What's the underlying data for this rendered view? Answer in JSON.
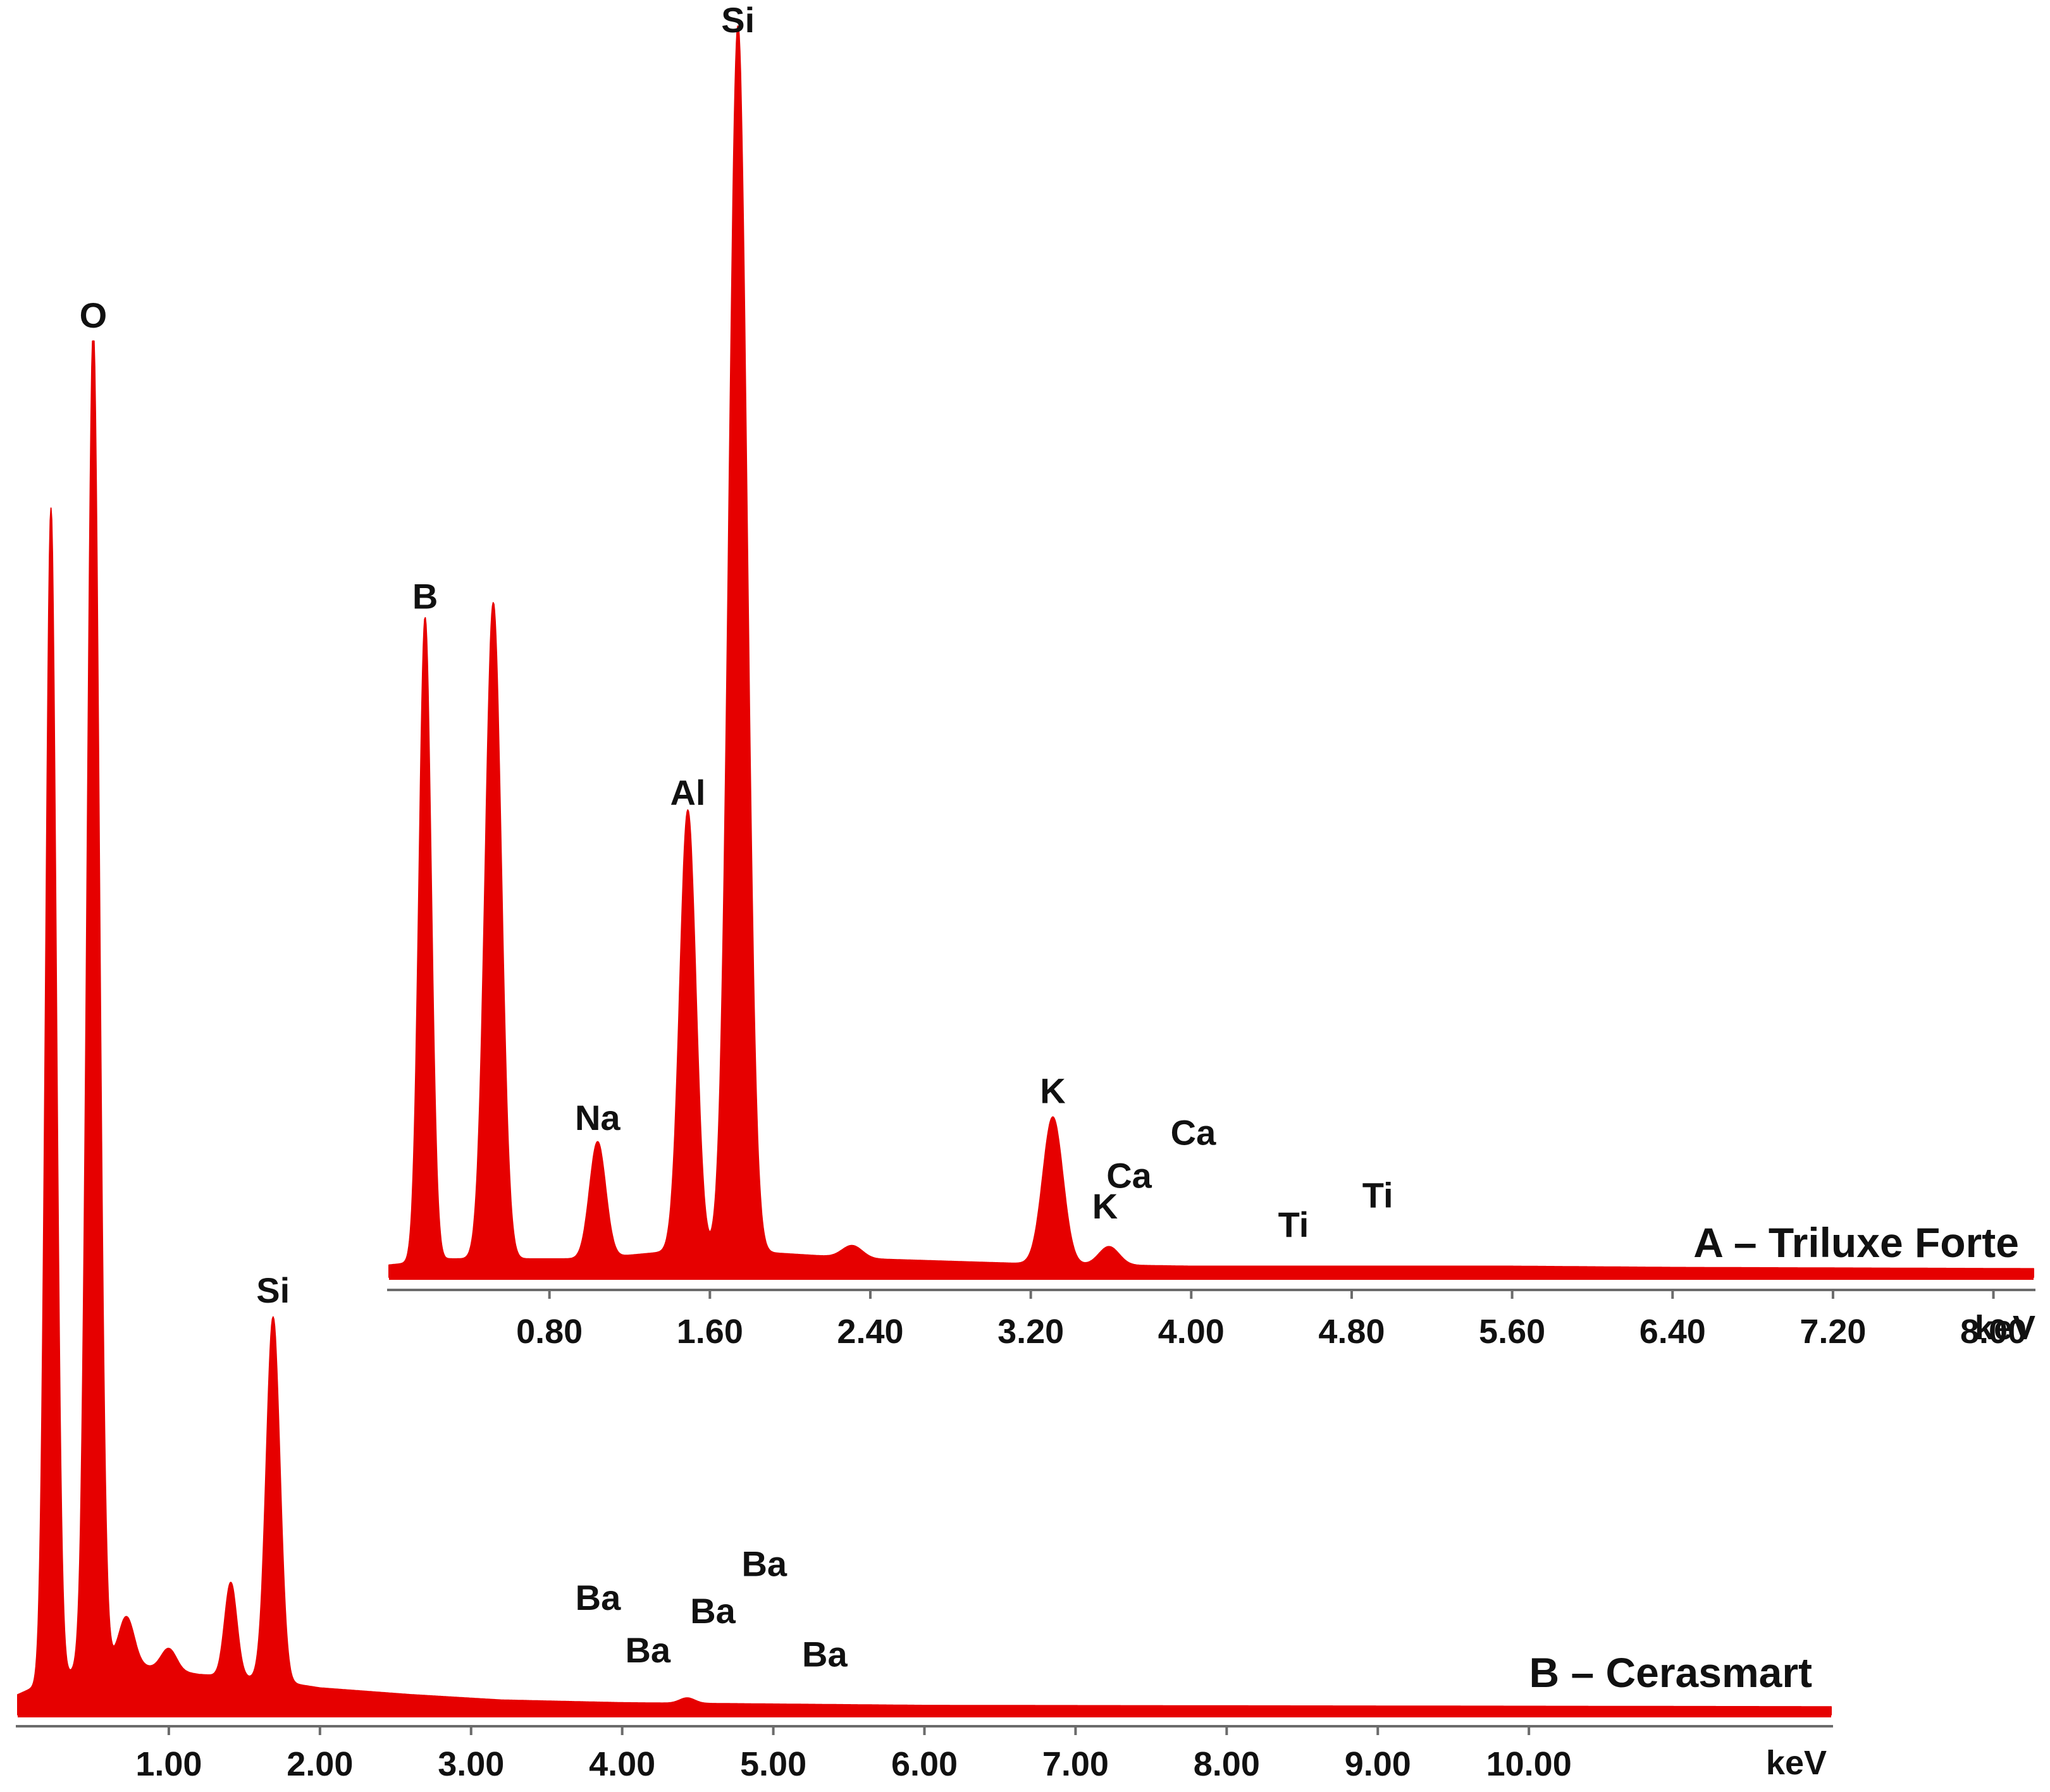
{
  "chart_data": [
    {
      "type": "area",
      "title": "A – Triluxe Forte",
      "xlabel": "keV",
      "ylabel": "",
      "xlim": [
        0.0,
        8.2
      ],
      "ylim": [
        0,
        100
      ],
      "grid": false,
      "color": "#e60000",
      "tick_labels": [
        "0.80",
        "1.60",
        "2.40",
        "3.20",
        "4.00",
        "4.80",
        "5.60",
        "6.40",
        "7.20",
        "8.00"
      ],
      "tick_values": [
        0.8,
        1.6,
        2.4,
        3.2,
        4.0,
        4.8,
        5.6,
        6.4,
        7.2,
        8.0
      ],
      "baseline": 0.5,
      "background": [
        [
          0.0,
          0.5
        ],
        [
          0.3,
          1.0
        ],
        [
          0.6,
          1.0
        ],
        [
          1.0,
          1.0
        ],
        [
          1.4,
          1.6
        ],
        [
          1.8,
          1.6
        ],
        [
          2.4,
          1.0
        ],
        [
          3.2,
          0.6
        ],
        [
          4.0,
          0.4
        ],
        [
          5.6,
          0.4
        ],
        [
          6.4,
          0.3
        ],
        [
          8.2,
          0.2
        ]
      ],
      "peaks": [
        {
          "label": "B",
          "energy": 0.18,
          "height": 52.5,
          "width": 0.03
        },
        {
          "label": "",
          "energy": 0.52,
          "height": 53.5,
          "width": 0.04
        },
        {
          "label": "Na",
          "energy": 1.04,
          "height": 9.5,
          "width": 0.04
        },
        {
          "label": "Al",
          "energy": 1.49,
          "height": 36.0,
          "width": 0.04
        },
        {
          "label": "Si",
          "energy": 1.74,
          "height": 100.0,
          "width": 0.045
        },
        {
          "label": "",
          "energy": 2.31,
          "height": 1.0,
          "width": 0.05
        },
        {
          "label": "K",
          "energy": 3.31,
          "height": 12.0,
          "width": 0.05
        },
        {
          "label": "",
          "energy": 3.59,
          "height": 1.5,
          "width": 0.05
        }
      ],
      "annotations": [
        {
          "text": "B",
          "x": 0.18,
          "y": 54.5
        },
        {
          "text": "Na",
          "x": 1.04,
          "y": 12.0
        },
        {
          "text": "Al",
          "x": 1.49,
          "y": 38.5
        },
        {
          "text": "Si",
          "x": 1.74,
          "y": 101.5
        },
        {
          "text": "K",
          "x": 3.31,
          "y": 14.2
        },
        {
          "text": "K",
          "x": 3.57,
          "y": 4.8
        },
        {
          "text": "Ca",
          "x": 3.69,
          "y": 7.3
        },
        {
          "text": "Ca",
          "x": 4.01,
          "y": 10.8
        },
        {
          "text": "Ti",
          "x": 4.51,
          "y": 3.3
        },
        {
          "text": "Ti",
          "x": 4.93,
          "y": 5.7
        }
      ]
    },
    {
      "type": "area",
      "title": "B – Cerasmart",
      "xlabel": "keV",
      "ylabel": "",
      "xlim": [
        0.0,
        12.0
      ],
      "ylim": [
        0,
        100
      ],
      "grid": false,
      "color": "#e60000",
      "tick_labels": [
        "1.00",
        "2.00",
        "3.00",
        "4.00",
        "5.00",
        "6.00",
        "7.00",
        "8.00",
        "9.00",
        "10.00"
      ],
      "tick_values": [
        1.0,
        2.0,
        3.0,
        4.0,
        5.0,
        6.0,
        7.0,
        8.0,
        9.0,
        10.0
      ],
      "baseline": 0.5,
      "background": [
        [
          0.0,
          1.0
        ],
        [
          0.3,
          2.5
        ],
        [
          0.6,
          3.5
        ],
        [
          0.9,
          3.0
        ],
        [
          1.2,
          2.5
        ],
        [
          1.6,
          2.2
        ],
        [
          2.0,
          1.5
        ],
        [
          2.6,
          1.0
        ],
        [
          3.2,
          0.6
        ],
        [
          4.0,
          0.4
        ],
        [
          5.0,
          0.3
        ],
        [
          6.0,
          0.2
        ],
        [
          12.0,
          0.1
        ]
      ],
      "peaks": [
        {
          "label": "",
          "energy": 0.22,
          "height": 87.0,
          "width": 0.035
        },
        {
          "label": "O",
          "energy": 0.5,
          "height": 99.5,
          "width": 0.04
        },
        {
          "label": "",
          "energy": 0.72,
          "height": 3.5,
          "width": 0.05
        },
        {
          "label": "",
          "energy": 1.0,
          "height": 1.6,
          "width": 0.05
        },
        {
          "label": "",
          "energy": 1.41,
          "height": 7.0,
          "width": 0.04
        },
        {
          "label": "Si",
          "energy": 1.69,
          "height": 27.0,
          "width": 0.045
        },
        {
          "label": "",
          "energy": 4.43,
          "height": 0.4,
          "width": 0.05
        }
      ],
      "annotations": [
        {
          "text": "O",
          "x": 0.5,
          "y": 103.0
        },
        {
          "text": "Si",
          "x": 1.69,
          "y": 30.6
        },
        {
          "text": "Ba",
          "x": 3.84,
          "y": 7.8
        },
        {
          "text": "Ba",
          "x": 4.17,
          "y": 3.9
        },
        {
          "text": "Ba",
          "x": 4.6,
          "y": 6.8
        },
        {
          "text": "Ba",
          "x": 4.94,
          "y": 10.3
        },
        {
          "text": "Ba",
          "x": 5.34,
          "y": 3.6
        }
      ]
    }
  ]
}
